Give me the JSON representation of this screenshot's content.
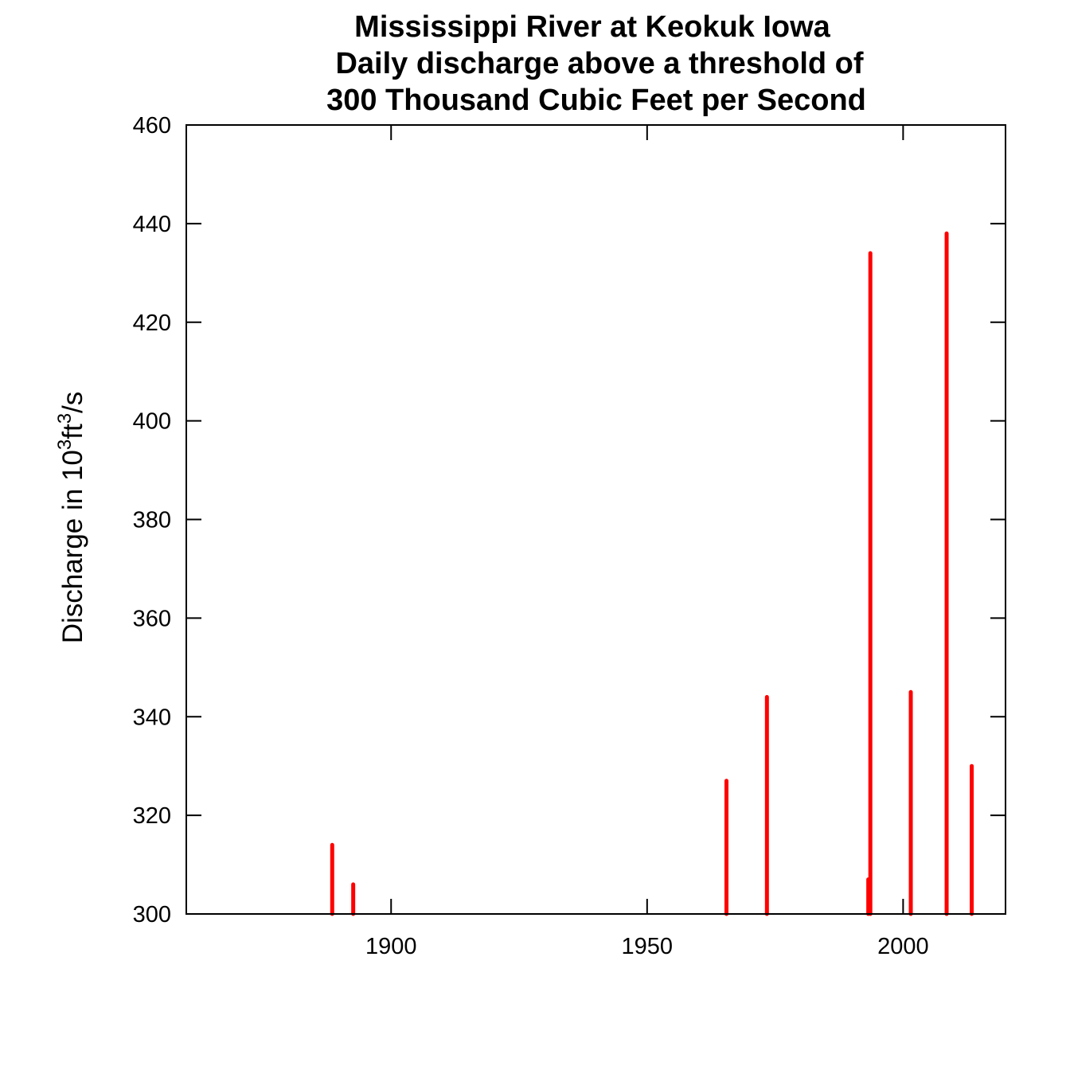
{
  "chart_data": {
    "type": "bar",
    "title_lines": [
      "Mississippi River at Keokuk Iowa",
      "Daily discharge above a threshold of",
      "300 Thousand Cubic Feet per Second"
    ],
    "xlabel": "",
    "ylabel": {
      "prefix": "Discharge in 10",
      "sup1": "3",
      "mid": "ft",
      "sup2": "3",
      "suffix": "/s"
    },
    "xlim": [
      1860,
      2020
    ],
    "ylim": [
      300,
      460
    ],
    "x_ticks": [
      1900,
      1950,
      2000
    ],
    "x_tick_labels": [
      "1900",
      "1950",
      "2000"
    ],
    "y_ticks": [
      300,
      320,
      340,
      360,
      380,
      400,
      420,
      440,
      460
    ],
    "y_tick_labels": [
      "300",
      "320",
      "340",
      "360",
      "380",
      "400",
      "420",
      "440",
      "460"
    ],
    "bar_color": "#ff0000",
    "grid": false,
    "points": [
      {
        "x": 1888.5,
        "y": 314
      },
      {
        "x": 1892.6,
        "y": 306
      },
      {
        "x": 1965.5,
        "y": 327
      },
      {
        "x": 1973.4,
        "y": 344
      },
      {
        "x": 1993.2,
        "y": 307
      },
      {
        "x": 1993.6,
        "y": 434
      },
      {
        "x": 2001.5,
        "y": 345
      },
      {
        "x": 2008.5,
        "y": 438
      },
      {
        "x": 2013.4,
        "y": 330
      }
    ]
  }
}
